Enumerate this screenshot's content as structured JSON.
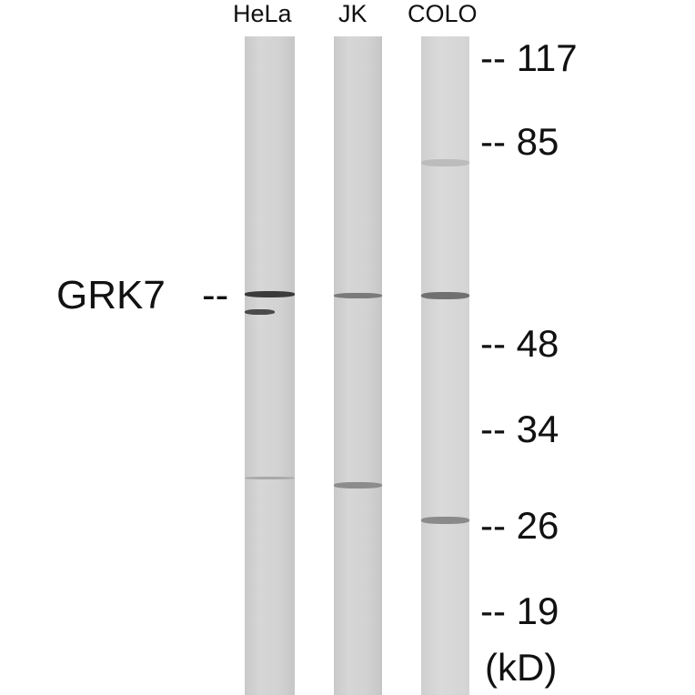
{
  "lanes": [
    {
      "label": "HeLa"
    },
    {
      "label": "JK"
    },
    {
      "label": "COLO"
    }
  ],
  "target": {
    "label": "GRK7",
    "dash": "--"
  },
  "markers": [
    {
      "label": "-- 117",
      "kd": 117
    },
    {
      "label": "-- 85",
      "kd": 85
    },
    {
      "label": "-- 48",
      "kd": 48
    },
    {
      "label": "-- 34",
      "kd": 34
    },
    {
      "label": "-- 26",
      "kd": 26
    },
    {
      "label": "-- 19",
      "kd": 19
    }
  ],
  "unit": "(kD)"
}
